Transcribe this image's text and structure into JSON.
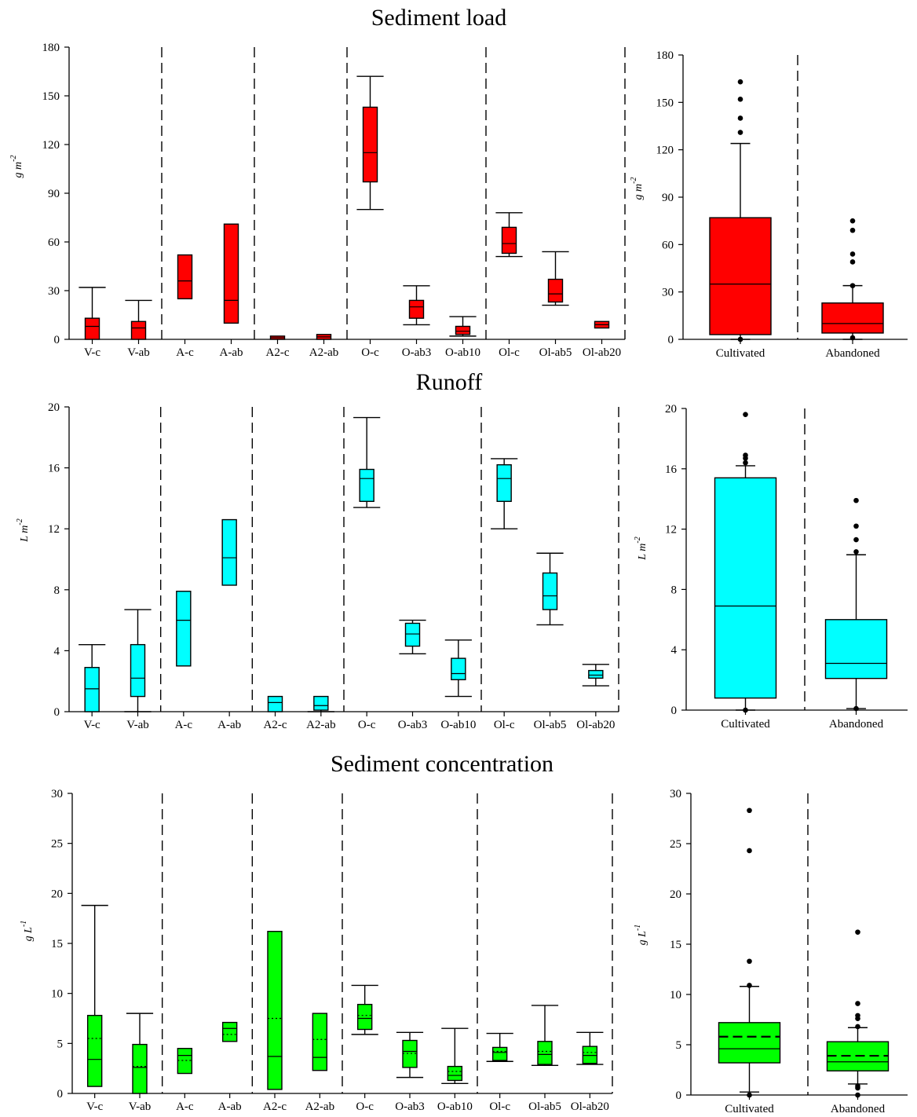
{
  "figure": {
    "colors": {
      "sediment_load": "#ff0000",
      "runoff": "#00ffff",
      "concentration": "#00ff00"
    }
  },
  "chart_data": [
    {
      "type": "box",
      "title": "Sediment load",
      "ylabel_base": "g m",
      "ylabel_exp": "-2",
      "ylim": [
        0,
        180
      ],
      "yticks": [
        0,
        30,
        60,
        90,
        120,
        150,
        180
      ],
      "categories": [
        "V-c",
        "V-ab",
        "A-c",
        "A-ab",
        "A2-c",
        "A2-ab",
        "O-c",
        "O-ab3",
        "O-ab10",
        "Ol-c",
        "Ol-ab5",
        "Ol-ab20"
      ],
      "groups_after": [
        2,
        4,
        6,
        9,
        12
      ],
      "boxes": [
        {
          "min": 0,
          "q1": 0,
          "median": 8,
          "q3": 13,
          "max": 32
        },
        {
          "min": 0,
          "q1": 0,
          "median": 7,
          "q3": 11,
          "max": 24
        },
        {
          "min": 25,
          "q1": 25,
          "median": 36,
          "q3": 52,
          "max": 52
        },
        {
          "min": 10,
          "q1": 10,
          "median": 24,
          "q3": 71,
          "max": 71
        },
        {
          "min": 0,
          "q1": 0,
          "median": 1,
          "q3": 2,
          "max": 2
        },
        {
          "min": 0,
          "q1": 0,
          "median": 1.5,
          "q3": 3,
          "max": 3
        },
        {
          "min": 80,
          "q1": 97,
          "median": 115,
          "q3": 143,
          "max": 162
        },
        {
          "min": 9,
          "q1": 13,
          "median": 20,
          "q3": 24,
          "max": 33
        },
        {
          "min": 2,
          "q1": 3,
          "median": 5,
          "q3": 8,
          "max": 14
        },
        {
          "min": 51,
          "q1": 53,
          "median": 59,
          "q3": 69,
          "max": 78
        },
        {
          "min": 21,
          "q1": 23,
          "median": 28,
          "q3": 37,
          "max": 54
        },
        {
          "min": 7,
          "q1": 7,
          "median": 9,
          "q3": 11,
          "max": 11
        }
      ],
      "summary": {
        "ylim": [
          0,
          180
        ],
        "yticks": [
          0,
          30,
          60,
          90,
          120,
          150,
          180
        ],
        "categories": [
          "Cultivated",
          "Abandoned"
        ],
        "boxes": [
          {
            "min": 0,
            "q1": 3,
            "median": 35,
            "q3": 77,
            "max": 124,
            "outliers": [
              131,
              140,
              152,
              163,
              0
            ]
          },
          {
            "min": 0,
            "q1": 4,
            "median": 10,
            "q3": 23,
            "max": 34,
            "outliers": [
              34,
              49,
              54,
              69,
              75,
              1
            ]
          }
        ]
      }
    },
    {
      "type": "box",
      "title": "Runoff",
      "ylabel_base": "L m",
      "ylabel_exp": "-2",
      "ylim": [
        0,
        20
      ],
      "yticks": [
        0,
        4,
        8,
        12,
        16,
        20
      ],
      "categories": [
        "V-c",
        "V-ab",
        "A-c",
        "A-ab",
        "A2-c",
        "A2-ab",
        "O-c",
        "O-ab3",
        "O-ab10",
        "Ol-c",
        "Ol-ab5",
        "Ol-ab20"
      ],
      "groups_after": [
        2,
        4,
        6,
        9,
        12
      ],
      "boxes": [
        {
          "min": 0,
          "q1": 0,
          "median": 1.5,
          "q3": 2.9,
          "max": 4.4
        },
        {
          "min": 0,
          "q1": 1.0,
          "median": 2.2,
          "q3": 4.4,
          "max": 6.7
        },
        {
          "min": 3.0,
          "q1": 3.0,
          "median": 6.0,
          "q3": 7.9,
          "max": 7.9
        },
        {
          "min": 8.3,
          "q1": 8.3,
          "median": 10.1,
          "q3": 12.6,
          "max": 12.6
        },
        {
          "min": 0,
          "q1": 0,
          "median": 0.6,
          "q3": 1.0,
          "max": 1.0
        },
        {
          "min": 0,
          "q1": 0.1,
          "median": 0.4,
          "q3": 1.0,
          "max": 1.0
        },
        {
          "min": 13.4,
          "q1": 13.8,
          "median": 15.3,
          "q3": 15.9,
          "max": 19.3
        },
        {
          "min": 3.8,
          "q1": 4.3,
          "median": 5.1,
          "q3": 5.8,
          "max": 6.0
        },
        {
          "min": 1.0,
          "q1": 2.1,
          "median": 2.5,
          "q3": 3.5,
          "max": 4.7
        },
        {
          "min": 12.0,
          "q1": 13.8,
          "median": 15.3,
          "q3": 16.2,
          "max": 16.6
        },
        {
          "min": 5.7,
          "q1": 6.7,
          "median": 7.6,
          "q3": 9.1,
          "max": 10.4
        },
        {
          "min": 1.7,
          "q1": 2.2,
          "median": 2.4,
          "q3": 2.7,
          "max": 3.1
        }
      ],
      "summary": {
        "ylim": [
          0,
          20
        ],
        "yticks": [
          0,
          4,
          8,
          12,
          16,
          20
        ],
        "categories": [
          "Cultivated",
          "Abandoned"
        ],
        "boxes": [
          {
            "min": 0,
            "q1": 0.8,
            "median": 6.9,
            "q3": 15.4,
            "max": 16.2,
            "outliers": [
              16.4,
              16.7,
              16.9,
              19.6,
              0
            ]
          },
          {
            "min": 0.1,
            "q1": 2.1,
            "median": 3.1,
            "q3": 6.0,
            "max": 10.3,
            "outliers": [
              10.5,
              11.3,
              12.2,
              13.9,
              0.1
            ]
          }
        ]
      }
    },
    {
      "type": "box",
      "title": "Sediment concentration",
      "ylabel_base": "g L",
      "ylabel_exp": "-1",
      "ylim": [
        0,
        30
      ],
      "yticks": [
        0,
        5,
        10,
        15,
        20,
        25,
        30
      ],
      "categories": [
        "V-c",
        "V-ab",
        "A-c",
        "A-ab",
        "A2-c",
        "A2-ab",
        "O-c",
        "O-ab3",
        "O-ab10",
        "Ol-c",
        "Ol-ab5",
        "Ol-ab20"
      ],
      "groups_after": [
        2,
        4,
        6,
        9,
        12
      ],
      "boxes": [
        {
          "min": 0.7,
          "q1": 0.7,
          "median": 3.4,
          "mean": 5.5,
          "q3": 7.8,
          "max": 18.8
        },
        {
          "min": 0,
          "q1": 0,
          "median": 2.6,
          "mean": 2.7,
          "q3": 4.9,
          "max": 8.0
        },
        {
          "min": 2.0,
          "q1": 2.0,
          "median": 3.8,
          "mean": 3.3,
          "q3": 4.5,
          "max": 4.5
        },
        {
          "min": 5.2,
          "q1": 5.2,
          "median": 6.5,
          "mean": 5.9,
          "q3": 7.1,
          "max": 7.1
        },
        {
          "min": 0.4,
          "q1": 0.4,
          "median": 3.7,
          "mean": 7.5,
          "q3": 16.2,
          "max": 16.2
        },
        {
          "min": 2.3,
          "q1": 2.3,
          "median": 3.6,
          "mean": 5.4,
          "q3": 8.0,
          "max": 8.0
        },
        {
          "min": 5.9,
          "q1": 6.4,
          "median": 7.5,
          "mean": 7.8,
          "q3": 8.9,
          "max": 10.8
        },
        {
          "min": 1.6,
          "q1": 2.6,
          "median": 4.2,
          "mean": 4.0,
          "q3": 5.3,
          "max": 6.1
        },
        {
          "min": 1.0,
          "q1": 1.3,
          "median": 1.8,
          "mean": 2.2,
          "q3": 2.7,
          "max": 6.5
        },
        {
          "min": 3.2,
          "q1": 3.3,
          "median": 4.1,
          "mean": 4.2,
          "q3": 4.6,
          "max": 6.0
        },
        {
          "min": 2.8,
          "q1": 2.9,
          "median": 3.9,
          "mean": 4.2,
          "q3": 5.2,
          "max": 8.8
        },
        {
          "min": 2.9,
          "q1": 3.0,
          "median": 3.8,
          "mean": 4.1,
          "q3": 4.7,
          "max": 6.1
        }
      ],
      "summary": {
        "ylim": [
          0,
          30
        ],
        "yticks": [
          0,
          5,
          10,
          15,
          20,
          25,
          30
        ],
        "categories": [
          "Cultivated",
          "Abandoned"
        ],
        "boxes": [
          {
            "min": 0.3,
            "q1": 3.2,
            "median": 4.6,
            "mean": 5.8,
            "q3": 7.2,
            "max": 10.8,
            "outliers": [
              10.9,
              13.3,
              24.3,
              28.3,
              0
            ]
          },
          {
            "min": 1.1,
            "q1": 2.4,
            "median": 3.3,
            "mean": 3.9,
            "q3": 5.3,
            "max": 6.7,
            "outliers": [
              6.8,
              7.6,
              7.9,
              9.1,
              16.2,
              0.7,
              0.9,
              0
            ]
          }
        ]
      }
    }
  ]
}
